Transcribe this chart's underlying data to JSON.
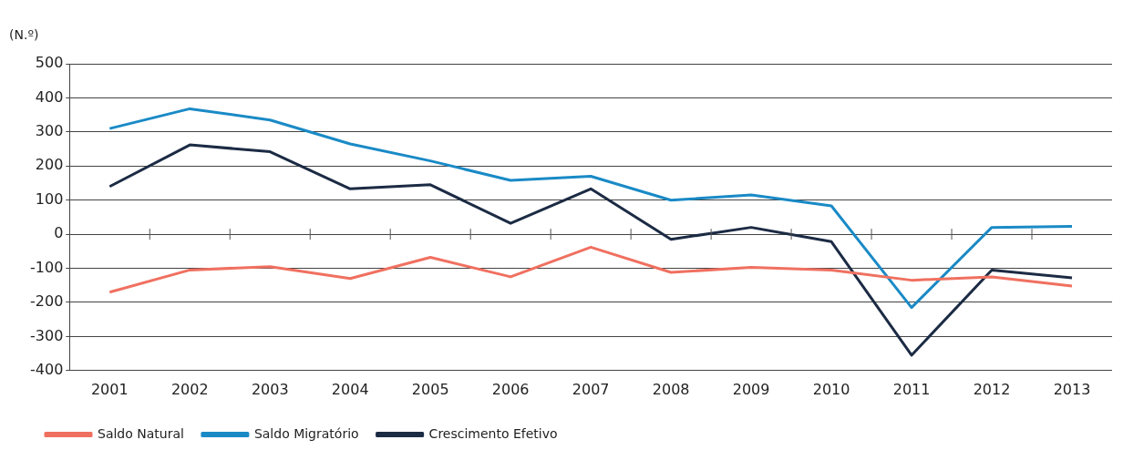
{
  "chart_data": {
    "type": "line",
    "ylabel": "(N.º)",
    "categories": [
      "2001",
      "2002",
      "2003",
      "2004",
      "2005",
      "2006",
      "2007",
      "2008",
      "2009",
      "2010",
      "2011",
      "2012",
      "2013"
    ],
    "series": [
      {
        "name": "Saldo Natural",
        "color": "#f07060",
        "values": [
          -170,
          -105,
          -95,
          -130,
          -68,
          -125,
          -38,
          -112,
          -97,
          -105,
          -135,
          -125,
          -152
        ]
      },
      {
        "name": "Saldo Migratório",
        "color": "#1a8ac6",
        "values": [
          310,
          368,
          335,
          265,
          215,
          158,
          170,
          100,
          115,
          83,
          -215,
          20,
          23
        ]
      },
      {
        "name": "Crescimento Efetivo",
        "color": "#1c2b44",
        "values": [
          140,
          262,
          242,
          133,
          145,
          32,
          133,
          -15,
          20,
          -22,
          -355,
          -105,
          -128
        ]
      }
    ],
    "ylim": [
      -400,
      500
    ],
    "yticks": [
      -400,
      -300,
      -200,
      -100,
      0,
      100,
      200,
      300,
      400,
      500
    ],
    "grid": "y",
    "legend": "bottom left",
    "marker": "none",
    "line_style": "solid"
  }
}
